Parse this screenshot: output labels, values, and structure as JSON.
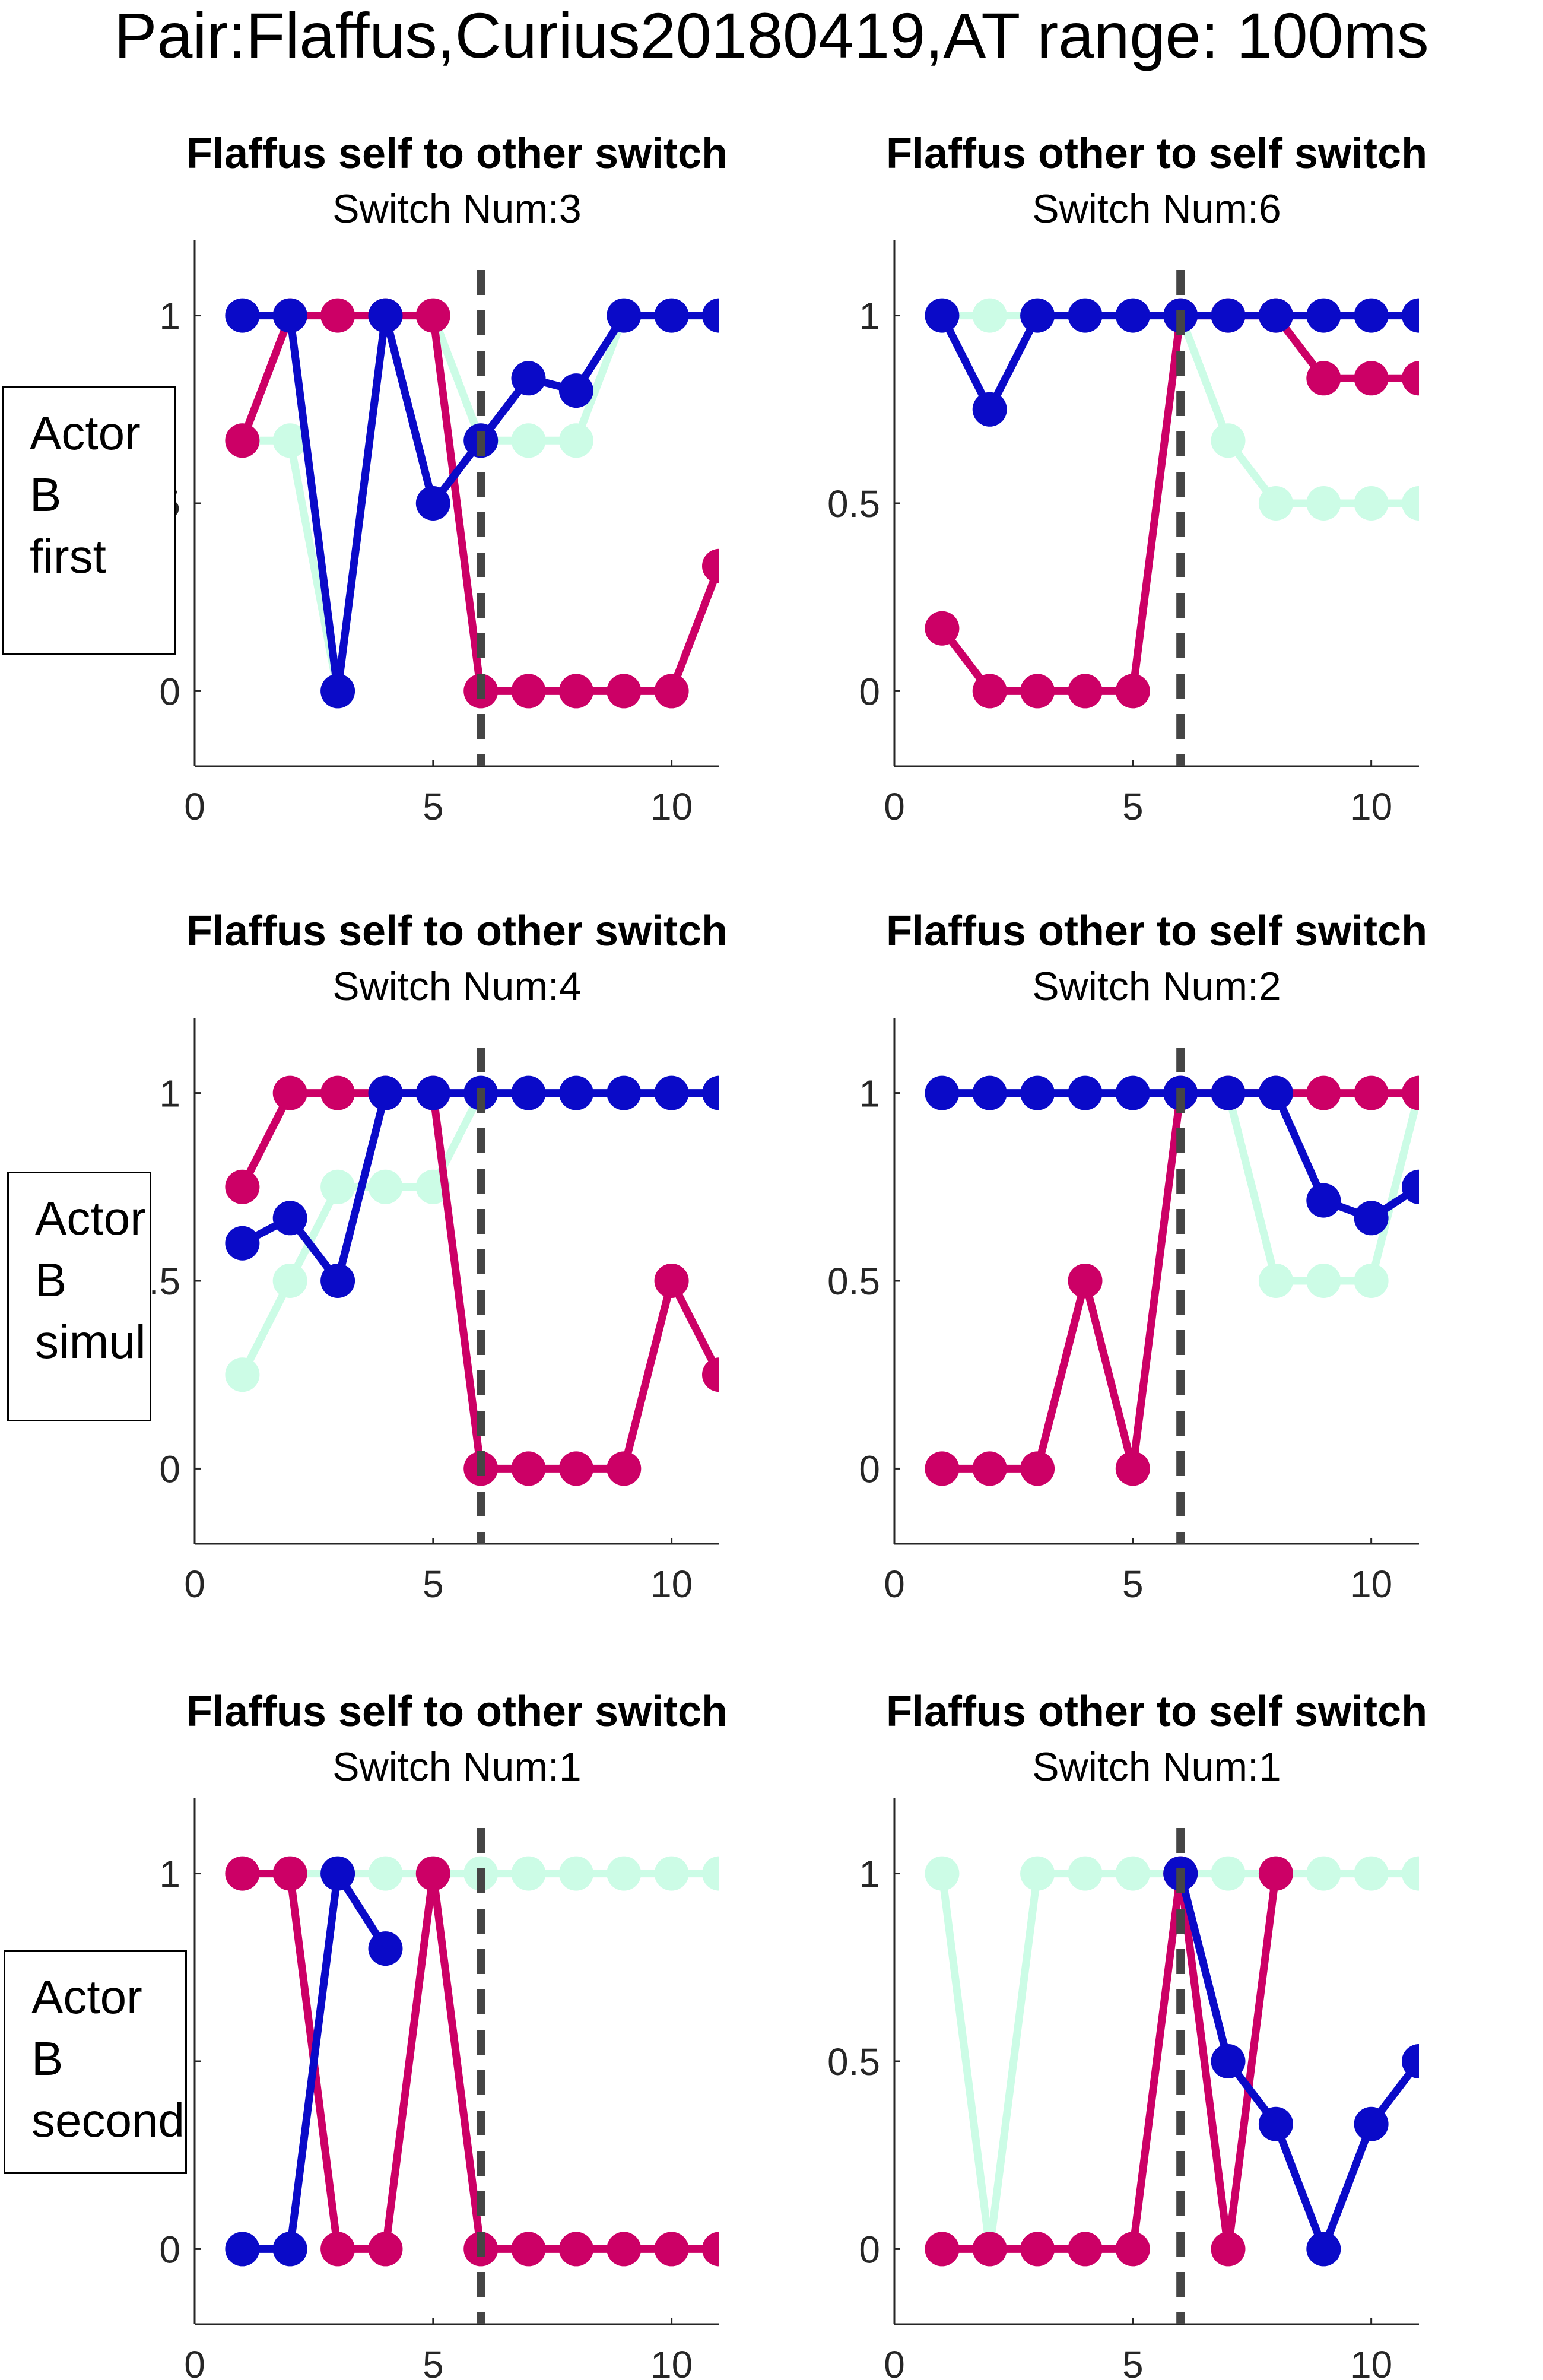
{
  "figure_title": "Pair:Flaffus,Curius20180419,AT range: 100ms",
  "row_labels": [
    {
      "line1": "Actor",
      "line2": "B",
      "line3": "first"
    },
    {
      "line1": "Actor",
      "line2": "B",
      "line3": "simul"
    },
    {
      "line1": "Actor",
      "line2": "B",
      "line3": "second"
    }
  ],
  "colors": {
    "blue": "#0a0ac8",
    "magenta": "#cc0066",
    "mint": "#ccfce6",
    "marker": "#454545"
  },
  "chart_data": [
    {
      "type": "line",
      "title": "Flaffus self to other switch",
      "subtitle": "Switch Num:3",
      "xlim": [
        0,
        11
      ],
      "ylim": [
        -0.2,
        1.2
      ],
      "xticks": [
        0,
        5,
        10
      ],
      "yticks": [
        0,
        0.5,
        1
      ],
      "switch_marker_x": 6,
      "series": [
        {
          "color": "blue",
          "points": [
            [
              1,
              1
            ],
            [
              2,
              1
            ],
            [
              3,
              0
            ],
            [
              4,
              1
            ],
            [
              5,
              0.5
            ],
            [
              6,
              0.667
            ],
            [
              7,
              0.833
            ],
            [
              8,
              0.8
            ],
            [
              9,
              1
            ],
            [
              10,
              1
            ],
            [
              11,
              1
            ]
          ]
        },
        {
          "color": "magenta",
          "points": [
            [
              1,
              0.667
            ],
            [
              2,
              1
            ],
            [
              3,
              1
            ],
            [
              4,
              1
            ],
            [
              5,
              1
            ],
            [
              6,
              0
            ],
            [
              7,
              0
            ],
            [
              8,
              0
            ],
            [
              9,
              0
            ],
            [
              10,
              0
            ],
            [
              11,
              0.333
            ]
          ]
        },
        {
          "color": "mint",
          "points": [
            [
              1,
              0.667
            ],
            [
              2,
              0.667
            ],
            [
              3,
              0
            ],
            [
              4,
              1
            ],
            [
              5,
              1
            ],
            [
              6,
              0.667
            ],
            [
              7,
              0.667
            ],
            [
              8,
              0.667
            ],
            [
              9,
              1
            ],
            [
              10,
              1
            ],
            [
              11,
              1
            ]
          ]
        }
      ]
    },
    {
      "type": "line",
      "title": "Flaffus other to self switch",
      "subtitle": "Switch Num:6",
      "xlim": [
        0,
        11
      ],
      "ylim": [
        -0.2,
        1.2
      ],
      "xticks": [
        0,
        5,
        10
      ],
      "yticks": [
        0,
        0.5,
        1
      ],
      "switch_marker_x": 6,
      "series": [
        {
          "color": "blue",
          "points": [
            [
              1,
              1
            ],
            [
              2,
              0.75
            ],
            [
              3,
              1
            ],
            [
              4,
              1
            ],
            [
              5,
              1
            ],
            [
              6,
              1
            ],
            [
              7,
              1
            ],
            [
              8,
              1
            ],
            [
              9,
              1
            ],
            [
              10,
              1
            ],
            [
              11,
              1
            ]
          ]
        },
        {
          "color": "magenta",
          "points": [
            [
              1,
              0.167
            ],
            [
              2,
              0
            ],
            [
              3,
              0
            ],
            [
              4,
              0
            ],
            [
              5,
              0
            ],
            [
              6,
              1
            ],
            [
              7,
              1
            ],
            [
              8,
              1
            ],
            [
              9,
              0.833
            ],
            [
              10,
              0.833
            ],
            [
              11,
              0.833
            ]
          ]
        },
        {
          "color": "mint",
          "points": [
            [
              1,
              1
            ],
            [
              2,
              1
            ],
            [
              3,
              1
            ],
            [
              4,
              1
            ],
            [
              5,
              1
            ],
            [
              6,
              1
            ],
            [
              7,
              0.667
            ],
            [
              8,
              0.5
            ],
            [
              9,
              0.5
            ],
            [
              10,
              0.5
            ],
            [
              11,
              0.5
            ]
          ]
        }
      ]
    },
    {
      "type": "line",
      "title": "Flaffus self to other switch",
      "subtitle": "Switch Num:4",
      "xlim": [
        0,
        11
      ],
      "ylim": [
        -0.2,
        1.2
      ],
      "xticks": [
        0,
        5,
        10
      ],
      "yticks": [
        0,
        0.5,
        1
      ],
      "switch_marker_x": 6,
      "series": [
        {
          "color": "blue",
          "points": [
            [
              1,
              0.6
            ],
            [
              2,
              0.667
            ],
            [
              3,
              0.5
            ],
            [
              4,
              1
            ],
            [
              5,
              1
            ],
            [
              6,
              1
            ],
            [
              7,
              1
            ],
            [
              8,
              1
            ],
            [
              9,
              1
            ],
            [
              10,
              1
            ],
            [
              11,
              1
            ]
          ]
        },
        {
          "color": "magenta",
          "points": [
            [
              1,
              0.75
            ],
            [
              2,
              1
            ],
            [
              3,
              1
            ],
            [
              4,
              1
            ],
            [
              5,
              1
            ],
            [
              6,
              0
            ],
            [
              7,
              0
            ],
            [
              8,
              0
            ],
            [
              9,
              0
            ],
            [
              10,
              0.5
            ],
            [
              11,
              0.25
            ]
          ]
        },
        {
          "color": "mint",
          "points": [
            [
              1,
              0.25
            ],
            [
              2,
              0.5
            ],
            [
              3,
              0.75
            ],
            [
              4,
              0.75
            ],
            [
              5,
              0.75
            ],
            [
              6,
              1
            ],
            [
              7,
              1
            ],
            [
              8,
              1
            ],
            [
              9,
              1
            ],
            [
              10,
              1
            ],
            [
              11,
              1
            ]
          ]
        }
      ]
    },
    {
      "type": "line",
      "title": "Flaffus other to self switch",
      "subtitle": "Switch Num:2",
      "xlim": [
        0,
        11
      ],
      "ylim": [
        -0.2,
        1.2
      ],
      "xticks": [
        0,
        5,
        10
      ],
      "yticks": [
        0,
        0.5,
        1
      ],
      "switch_marker_x": 6,
      "series": [
        {
          "color": "blue",
          "points": [
            [
              1,
              1
            ],
            [
              2,
              1
            ],
            [
              3,
              1
            ],
            [
              4,
              1
            ],
            [
              5,
              1
            ],
            [
              6,
              1
            ],
            [
              7,
              1
            ],
            [
              8,
              1
            ],
            [
              9,
              0.714
            ],
            [
              10,
              0.667
            ],
            [
              11,
              0.75
            ]
          ]
        },
        {
          "color": "magenta",
          "points": [
            [
              1,
              0
            ],
            [
              2,
              0
            ],
            [
              3,
              0
            ],
            [
              4,
              0.5
            ],
            [
              5,
              0
            ],
            [
              6,
              1
            ],
            [
              7,
              1
            ],
            [
              8,
              1
            ],
            [
              9,
              1
            ],
            [
              10,
              1
            ],
            [
              11,
              1
            ]
          ]
        },
        {
          "color": "mint",
          "points": [
            [
              1,
              1
            ],
            [
              2,
              1
            ],
            [
              3,
              1
            ],
            [
              4,
              1
            ],
            [
              5,
              1
            ],
            [
              6,
              1
            ],
            [
              7,
              1
            ],
            [
              8,
              0.5
            ],
            [
              9,
              0.5
            ],
            [
              10,
              0.5
            ],
            [
              11,
              1
            ]
          ]
        }
      ]
    },
    {
      "type": "line",
      "title": "Flaffus self to other switch",
      "subtitle": "Switch Num:1",
      "xlim": [
        0,
        11
      ],
      "ylim": [
        -0.2,
        1.2
      ],
      "xticks": [
        0,
        5,
        10
      ],
      "yticks": [
        0,
        0.5,
        1
      ],
      "switch_marker_x": 6,
      "series": [
        {
          "color": "blue",
          "points": [
            [
              1,
              0
            ],
            [
              2,
              0
            ],
            [
              3,
              1
            ],
            [
              4,
              0.8
            ]
          ]
        },
        {
          "color": "magenta",
          "points": [
            [
              1,
              1
            ],
            [
              2,
              1
            ],
            [
              3,
              0
            ],
            [
              4,
              0
            ],
            [
              5,
              1
            ],
            [
              6,
              0
            ],
            [
              7,
              0
            ],
            [
              8,
              0
            ],
            [
              9,
              0
            ],
            [
              10,
              0
            ],
            [
              11,
              0
            ]
          ]
        },
        {
          "color": "mint",
          "points": [
            [
              1,
              1
            ],
            [
              2,
              1
            ],
            [
              3,
              1
            ],
            [
              4,
              1
            ],
            [
              5,
              1
            ],
            [
              6,
              1
            ],
            [
              7,
              1
            ],
            [
              8,
              1
            ],
            [
              9,
              1
            ],
            [
              10,
              1
            ],
            [
              11,
              1
            ]
          ]
        }
      ]
    },
    {
      "type": "line",
      "title": "Flaffus other to self switch",
      "subtitle": "Switch Num:1",
      "xlim": [
        0,
        11
      ],
      "ylim": [
        -0.2,
        1.2
      ],
      "xticks": [
        0,
        5,
        10
      ],
      "yticks": [
        0,
        0.5,
        1
      ],
      "switch_marker_x": 6,
      "series": [
        {
          "color": "blue",
          "points": [
            [
              6,
              1
            ],
            [
              7,
              0.5
            ],
            [
              8,
              0.333
            ],
            [
              9,
              0
            ],
            [
              10,
              0.333
            ],
            [
              11,
              0.5
            ]
          ]
        },
        {
          "color": "magenta",
          "points": [
            [
              1,
              0
            ],
            [
              2,
              0
            ],
            [
              3,
              0
            ],
            [
              4,
              0
            ],
            [
              5,
              0
            ],
            [
              6,
              1
            ],
            [
              7,
              0
            ],
            [
              8,
              1
            ]
          ]
        },
        {
          "color": "mint",
          "points": [
            [
              1,
              1
            ],
            [
              2,
              0
            ],
            [
              3,
              1
            ],
            [
              4,
              1
            ],
            [
              5,
              1
            ],
            [
              6,
              1
            ],
            [
              7,
              1
            ],
            [
              8,
              1
            ],
            [
              9,
              1
            ],
            [
              10,
              1
            ],
            [
              11,
              1
            ]
          ]
        }
      ]
    }
  ]
}
